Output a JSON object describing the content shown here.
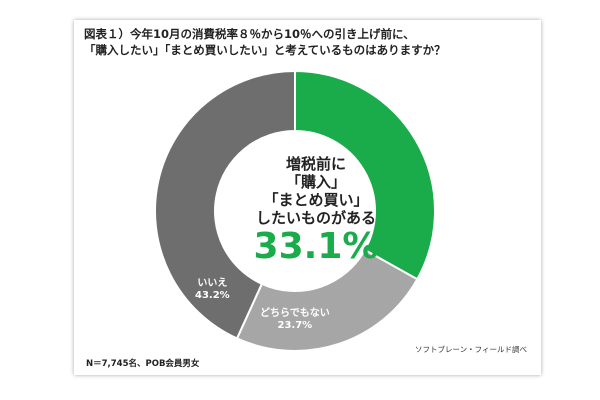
{
  "title": {
    "line1": "図表１）今年10月の消費税率８％から10％への引き上げ前に、",
    "line2": "「購入したい」「まとめ買いしたい」と考えているものはありますか？"
  },
  "center": {
    "line1": "増税前に",
    "line2": "「購入」",
    "line3": "「まとめ買い」",
    "line4": "したいものがある",
    "value": "33.1%"
  },
  "chart_data": {
    "type": "pie",
    "donut": true,
    "categories": [
      "増税前に「購入」「まとめ買い」したいものがある",
      "どちらでもない",
      "いいえ"
    ],
    "values": [
      33.1,
      23.7,
      43.2
    ],
    "colors": [
      "#1aab4a",
      "#a6a6a6",
      "#6e6e6e"
    ],
    "labels": [
      {
        "name": "",
        "pct": ""
      },
      {
        "name": "どちらでもない",
        "pct": "23.7%"
      },
      {
        "name": "いいえ",
        "pct": "43.2%"
      }
    ]
  },
  "footer": {
    "source": "ソフトブレーン・フィールド調べ",
    "note": "N＝7,745名、POB会員男女"
  }
}
